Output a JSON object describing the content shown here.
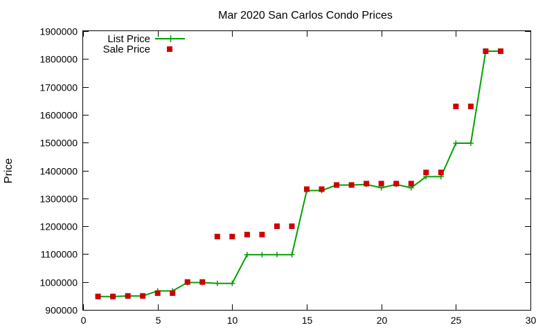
{
  "chart_data": {
    "type": "line",
    "title": "Mar 2020 San Carlos Condo Prices",
    "xlabel": "",
    "ylabel": "Price",
    "xlim": [
      0,
      30
    ],
    "ylim": [
      900000,
      1900000
    ],
    "xticks": [
      0,
      5,
      10,
      15,
      20,
      25,
      30
    ],
    "yticks": [
      900000,
      1000000,
      1100000,
      1200000,
      1300000,
      1400000,
      1500000,
      1600000,
      1700000,
      1800000,
      1900000
    ],
    "grid": false,
    "legend_position": "top-left",
    "series": [
      {
        "name": "List Price",
        "style": "line-with-plus-markers",
        "color": "#00a000",
        "x": [
          1,
          2,
          3,
          4,
          5,
          6,
          7,
          8,
          9,
          10,
          11,
          12,
          13,
          14,
          15,
          16,
          17,
          18,
          19,
          20,
          21,
          22,
          23,
          24,
          25,
          26,
          27,
          28
        ],
        "y": [
          948000,
          948000,
          950000,
          950000,
          968000,
          968000,
          998000,
          998000,
          995000,
          995000,
          1098000,
          1098000,
          1098000,
          1098000,
          1328000,
          1328000,
          1348000,
          1348000,
          1350000,
          1338000,
          1350000,
          1338000,
          1378000,
          1378000,
          1498000,
          1498000,
          1828000,
          1828000
        ]
      },
      {
        "name": "Sale Price",
        "style": "square-markers",
        "color": "#cc0000",
        "x": [
          1,
          2,
          3,
          4,
          5,
          6,
          7,
          8,
          9,
          10,
          11,
          12,
          13,
          14,
          15,
          16,
          17,
          18,
          19,
          20,
          21,
          22,
          23,
          24,
          25,
          26,
          27,
          28
        ],
        "y": [
          948000,
          948000,
          950000,
          950000,
          960000,
          960000,
          1000000,
          1000000,
          1163000,
          1163000,
          1170000,
          1170000,
          1200000,
          1200000,
          1333000,
          1333000,
          1348000,
          1348000,
          1353000,
          1353000,
          1353000,
          1353000,
          1393000,
          1393000,
          1630000,
          1630000,
          1828000,
          1828000
        ]
      }
    ]
  }
}
